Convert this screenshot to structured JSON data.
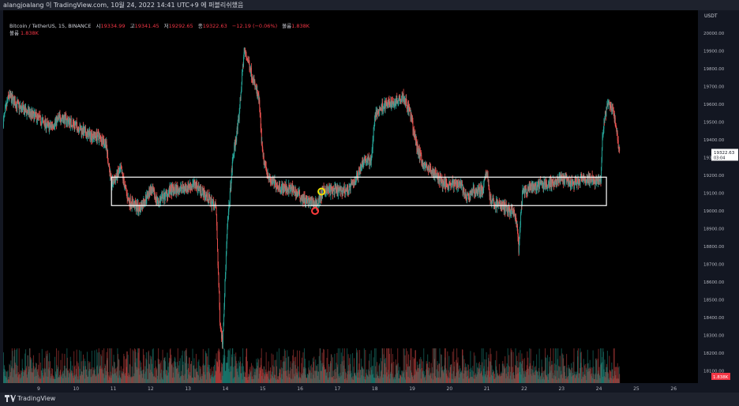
{
  "header": {
    "title": "alangjoalang 이 TradingView.com, 10월 24, 2022 14:41 UTC+9 에 퍼블리쉬했음"
  },
  "legend": {
    "symbol": "Bitcoin / TetherUS, 15, BINANCE",
    "open_label": "시",
    "open": "19334.99",
    "high_label": "고",
    "high": "19341.45",
    "low_label": "저",
    "low": "19292.65",
    "close_label": "종",
    "close": "19322.63",
    "change": "−12.19 (−0.06%)",
    "volume_label": "볼륨",
    "volume": "1.838K",
    "volume_row_label": "볼륨",
    "volume_row_value": "1.838K"
  },
  "footer": {
    "logo_text": "TradingView"
  },
  "colors": {
    "background": "#000000",
    "up": "#26a69a",
    "down": "#ef5350",
    "box": "#ffffff",
    "red_marker": "#ff3b3b",
    "yellow_marker": "#f2e205",
    "price_label_bg": "#ffffff",
    "volume_label_bg": "#f23645"
  },
  "chart_data": {
    "type": "candlestick",
    "currency": "USDT",
    "x_tick_labels": [
      "9",
      "10",
      "11",
      "12",
      "13",
      "14",
      "15",
      "16",
      "17",
      "18",
      "19",
      "20",
      "21",
      "22",
      "23",
      "24",
      "25",
      "26"
    ],
    "x_range": [
      8.05,
      26.65
    ],
    "y_ticks": [
      18100,
      18200,
      18300,
      18400,
      18500,
      18600,
      18700,
      18800,
      18900,
      19000,
      19100,
      19200,
      19300,
      19400,
      19500,
      19600,
      19700,
      19800,
      19900,
      20000,
      20100
    ],
    "y_tick_labels": [
      "18100.00",
      "18200.00",
      "18300.00",
      "18400.00",
      "18500.00",
      "18600.00",
      "18700.00",
      "18800.00",
      "18900.00",
      "19000.00",
      "19100.00",
      "19200.00",
      "19300.00",
      "19400.00",
      "19500.00",
      "19600.00",
      "19700.00",
      "19800.00",
      "19900.00",
      "20000.00",
      "20100.00"
    ],
    "y_range": [
      18030,
      20130
    ],
    "price_path": [
      [
        8.05,
        19500
      ],
      [
        8.2,
        19650
      ],
      [
        8.5,
        19580
      ],
      [
        9.0,
        19520
      ],
      [
        9.3,
        19470
      ],
      [
        9.6,
        19530
      ],
      [
        10.0,
        19480
      ],
      [
        10.3,
        19430
      ],
      [
        10.6,
        19420
      ],
      [
        10.8,
        19380
      ],
      [
        10.95,
        19150
      ],
      [
        11.2,
        19230
      ],
      [
        11.4,
        19060
      ],
      [
        11.7,
        19010
      ],
      [
        12.0,
        19120
      ],
      [
        12.2,
        19050
      ],
      [
        12.5,
        19110
      ],
      [
        12.9,
        19130
      ],
      [
        13.2,
        19150
      ],
      [
        13.5,
        19080
      ],
      [
        13.75,
        19020
      ],
      [
        13.85,
        18400
      ],
      [
        13.92,
        18250
      ],
      [
        14.05,
        18900
      ],
      [
        14.2,
        19300
      ],
      [
        14.35,
        19500
      ],
      [
        14.5,
        19900
      ],
      [
        14.6,
        19850
      ],
      [
        14.9,
        19620
      ],
      [
        15.0,
        19300
      ],
      [
        15.2,
        19170
      ],
      [
        15.5,
        19130
      ],
      [
        15.8,
        19120
      ],
      [
        16.2,
        19050
      ],
      [
        16.45,
        19040
      ],
      [
        16.65,
        19120
      ],
      [
        17.0,
        19110
      ],
      [
        17.3,
        19120
      ],
      [
        17.5,
        19180
      ],
      [
        17.7,
        19290
      ],
      [
        17.9,
        19280
      ],
      [
        18.0,
        19530
      ],
      [
        18.2,
        19590
      ],
      [
        18.5,
        19610
      ],
      [
        18.75,
        19650
      ],
      [
        18.95,
        19550
      ],
      [
        19.1,
        19380
      ],
      [
        19.3,
        19260
      ],
      [
        19.6,
        19210
      ],
      [
        19.8,
        19160
      ],
      [
        20.1,
        19150
      ],
      [
        20.3,
        19160
      ],
      [
        20.45,
        19060
      ],
      [
        20.6,
        19110
      ],
      [
        20.9,
        19120
      ],
      [
        21.0,
        19230
      ],
      [
        21.1,
        19050
      ],
      [
        21.4,
        19030
      ],
      [
        21.7,
        18990
      ],
      [
        21.8,
        18930
      ],
      [
        21.85,
        18780
      ],
      [
        21.95,
        19100
      ],
      [
        22.2,
        19130
      ],
      [
        22.5,
        19150
      ],
      [
        22.8,
        19160
      ],
      [
        23.0,
        19180
      ],
      [
        23.3,
        19150
      ],
      [
        23.6,
        19180
      ],
      [
        23.9,
        19170
      ],
      [
        24.05,
        19180
      ],
      [
        24.1,
        19440
      ],
      [
        24.2,
        19580
      ],
      [
        24.3,
        19610
      ],
      [
        24.45,
        19490
      ],
      [
        24.55,
        19322.63
      ]
    ],
    "zone": {
      "x_start": 10.95,
      "x_end": 24.2,
      "y_high": 19190,
      "y_low": 19030
    },
    "markers": [
      {
        "color": "red",
        "x": 16.4,
        "y": 19000
      },
      {
        "color": "yellow",
        "x": 16.57,
        "y": 19109
      }
    ],
    "last_price": 19322.63,
    "last_price_label": "19322.63",
    "countdown_label": "03:04",
    "last_volume_label": "1.838K"
  }
}
